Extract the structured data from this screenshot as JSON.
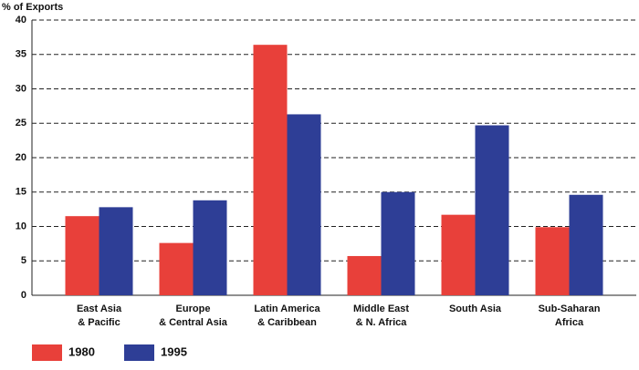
{
  "chart_data": {
    "type": "bar",
    "y_label": "% of Exports",
    "categories": [
      [
        "East Asia",
        "& Pacific"
      ],
      [
        "Europe",
        "& Central Asia"
      ],
      [
        "Latin America",
        "& Caribbean"
      ],
      [
        "Middle East",
        "& N. Africa"
      ],
      [
        "South Asia"
      ],
      [
        "Sub-Saharan",
        "Africa"
      ]
    ],
    "series": [
      {
        "name": "1980",
        "color": "#e8403a",
        "values": [
          11.5,
          7.6,
          36.4,
          5.7,
          11.7,
          9.9
        ]
      },
      {
        "name": "1995",
        "color": "#2e3e96",
        "values": [
          12.8,
          13.8,
          26.3,
          15.0,
          24.7,
          14.6
        ]
      }
    ],
    "ylim": [
      0,
      40
    ],
    "yticks": [
      0,
      5,
      10,
      15,
      20,
      25,
      30,
      35,
      40
    ],
    "grid": true
  }
}
